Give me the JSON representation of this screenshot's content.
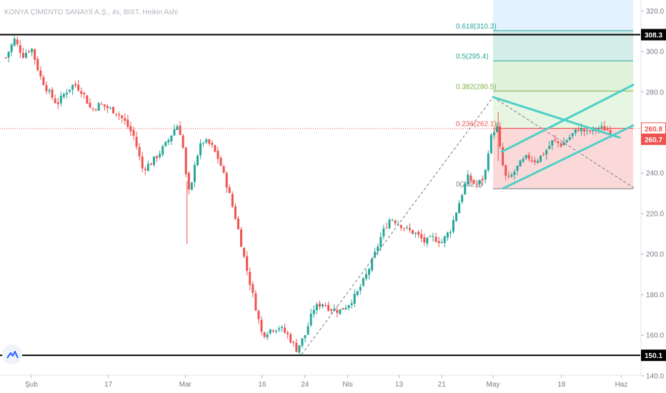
{
  "chart_data": {
    "type": "candlestick",
    "title": "KONYA ÇİMENTO SANAYİİ A.Ş., 4s, BIST, Heikin Ashi",
    "colors": {
      "up": "#26a69a",
      "down": "#ef5350",
      "trendline": "#4dd0c8",
      "horizontal_line": "#000000",
      "price_line": "#ef5350",
      "fib_outer": "#1e88e5",
      "fib_upper": "#26a69a",
      "fib_mid": "#7cb342",
      "fib_lower": "#ef5350",
      "axis_text": "#787b86"
    },
    "y_axis": {
      "range": [
        131.5,
        325.4
      ],
      "ticks": [
        140.0,
        160.0,
        180.0,
        200.0,
        220.0,
        240.0,
        260.0,
        280.0,
        300.0,
        320.0
      ],
      "tick_labels": [
        "140.0",
        "160.0",
        "180.0",
        "200.0",
        "220.0",
        "240.0",
        "260.0",
        "280.0",
        "300.0",
        "320.0"
      ]
    },
    "x_axis": {
      "tick_labels": [
        "Şub",
        "17",
        "Mar",
        "16",
        "24",
        "Nis",
        "13",
        "21",
        "May",
        "18",
        "Haz"
      ],
      "tick_positions": [
        1.5,
        6,
        10.5,
        15,
        17.5,
        20,
        23,
        25.5,
        28.5,
        32.5,
        36
      ]
    },
    "price_path": [
      [
        0,
        297
      ],
      [
        0.5,
        306
      ],
      [
        1,
        298
      ],
      [
        1.5,
        302
      ],
      [
        2,
        288
      ],
      [
        2.5,
        280
      ],
      [
        3,
        274
      ],
      [
        3.5,
        280
      ],
      [
        4,
        284
      ],
      [
        4.5,
        280
      ],
      [
        5,
        271
      ],
      [
        5.5,
        274
      ],
      [
        6,
        272
      ],
      [
        6.5,
        270
      ],
      [
        7,
        265
      ],
      [
        7.5,
        258
      ],
      [
        8,
        242
      ],
      [
        8.5,
        245
      ],
      [
        9,
        250
      ],
      [
        9.5,
        256
      ],
      [
        10,
        264
      ],
      [
        10.3,
        258
      ],
      [
        10.6,
        234
      ],
      [
        10.8,
        228
      ],
      [
        11,
        244
      ],
      [
        11.5,
        256
      ],
      [
        12,
        254
      ],
      [
        12.5,
        246
      ],
      [
        13,
        232
      ],
      [
        13.5,
        216
      ],
      [
        14,
        196
      ],
      [
        14.5,
        178
      ],
      [
        15,
        160
      ],
      [
        15.5,
        163
      ],
      [
        16,
        164
      ],
      [
        16.5,
        160
      ],
      [
        17,
        153
      ],
      [
        17.5,
        160
      ],
      [
        18,
        173
      ],
      [
        18.5,
        176
      ],
      [
        19,
        173
      ],
      [
        19.5,
        172
      ],
      [
        20,
        175
      ],
      [
        20.5,
        180
      ],
      [
        21,
        188
      ],
      [
        21.5,
        198
      ],
      [
        22,
        210
      ],
      [
        22.5,
        218
      ],
      [
        23,
        215
      ],
      [
        23.5,
        212
      ],
      [
        24,
        210
      ],
      [
        24.5,
        206
      ],
      [
        25,
        208
      ],
      [
        25.5,
        206
      ],
      [
        26,
        212
      ],
      [
        26.5,
        225
      ],
      [
        27,
        238
      ],
      [
        27.5,
        234
      ],
      [
        28,
        238
      ],
      [
        28.3,
        256
      ],
      [
        28.7,
        264
      ],
      [
        29,
        246
      ],
      [
        29.3,
        236
      ],
      [
        29.7,
        240
      ],
      [
        30,
        244
      ],
      [
        30.5,
        248
      ],
      [
        31,
        246
      ],
      [
        31.5,
        250
      ],
      [
        32,
        256
      ],
      [
        32.5,
        254
      ],
      [
        33,
        258
      ],
      [
        33.5,
        262
      ],
      [
        34,
        260
      ],
      [
        34.5,
        262
      ],
      [
        35,
        262
      ],
      [
        35.5,
        260
      ]
    ],
    "annotations": {
      "horizontal_lines": [
        {
          "price": 308.3,
          "label": "308.3"
        },
        {
          "price": 150.1,
          "label": "150.1"
        }
      ],
      "last_price_badges": [
        {
          "price": 262.0,
          "label": "260.8",
          "style": "outline"
        },
        {
          "price": 256.7,
          "label": "260.7",
          "style": "filled"
        }
      ],
      "last_price_line": 262.0,
      "fibonacci": {
        "x_range": [
          28.5,
          36.8
        ],
        "levels": [
          {
            "ratio": "0.618",
            "price": 310.3,
            "label": "0.618(310.3)"
          },
          {
            "ratio": "0.5",
            "price": 295.4,
            "label": "0.5(295.4)"
          },
          {
            "ratio": "0.382",
            "price": 280.5,
            "label": "0.382(280.5)"
          },
          {
            "ratio": "0.236",
            "price": 262.1,
            "label": "0.236(262.1)"
          },
          {
            "ratio": "0",
            "price": 232.3,
            "label": "0(232.3)"
          }
        ],
        "top_price": 328.0
      },
      "dashed_lines": [
        {
          "from": [
            17.3,
            150.5
          ],
          "to": [
            28.5,
            277.5
          ]
        },
        {
          "from": [
            28.5,
            277.5
          ],
          "to": [
            36.8,
            232.3
          ]
        }
      ],
      "trendlines": [
        {
          "from": [
            28.5,
            277.5
          ],
          "to": [
            35.9,
            257.5
          ]
        },
        {
          "from": [
            29.1,
            232.5
          ],
          "to": [
            36.8,
            263.5
          ]
        },
        {
          "from": [
            29.0,
            250.5
          ],
          "to": [
            36.8,
            283.5
          ]
        }
      ]
    }
  },
  "ui": {
    "logo_name": "tradingview-logo-icon"
  }
}
